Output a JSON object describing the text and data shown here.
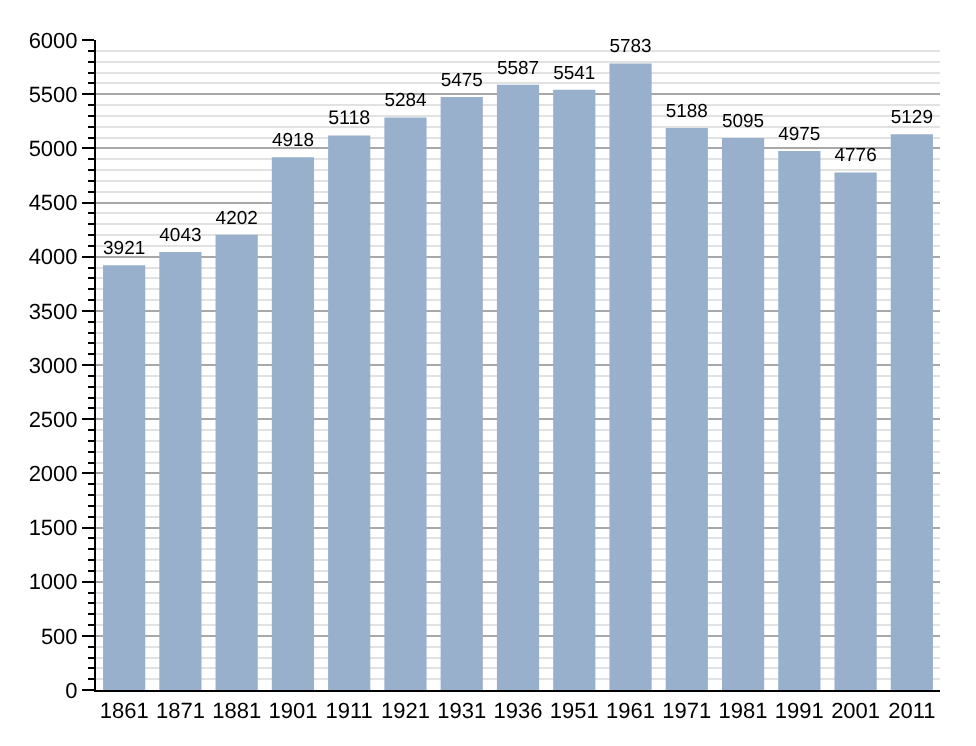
{
  "chart_data": {
    "type": "bar",
    "categories": [
      "1861",
      "1871",
      "1881",
      "1901",
      "1911",
      "1921",
      "1931",
      "1936",
      "1951",
      "1961",
      "1971",
      "1981",
      "1991",
      "2001",
      "2011"
    ],
    "values": [
      3921,
      4043,
      4202,
      4918,
      5118,
      5284,
      5475,
      5587,
      5541,
      5783,
      5188,
      5095,
      4975,
      4776,
      5129
    ],
    "color": "#98b0cc",
    "ylim": [
      0,
      6000
    ],
    "yticks": [
      0,
      500,
      1000,
      1500,
      2000,
      2500,
      3000,
      3500,
      4000,
      4500,
      5000,
      5500,
      6000
    ],
    "grid": "y",
    "data_labels": true
  }
}
